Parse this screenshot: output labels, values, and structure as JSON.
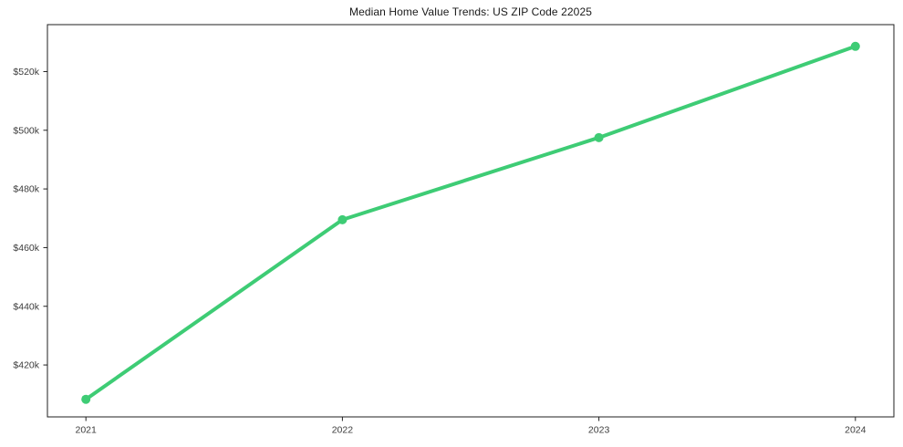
{
  "chart_data": {
    "type": "line",
    "title": "Median Home Value Trends: US ZIP Code 22025",
    "x": [
      2021,
      2022,
      2023,
      2024
    ],
    "values": [
      408300,
      469500,
      497500,
      528600
    ],
    "xlabel": "",
    "ylabel": "",
    "xtick_labels": [
      "2021",
      "2022",
      "2023",
      "2024"
    ],
    "ytick_values": [
      420000,
      440000,
      460000,
      480000,
      500000,
      520000
    ],
    "ytick_labels": [
      "$420k",
      "$440k",
      "$460k",
      "$480k",
      "$500k",
      "$520k"
    ],
    "xlim": [
      2020.85,
      2024.15
    ],
    "ylim": [
      402300,
      536000
    ],
    "grid": false,
    "legend_position": "none",
    "line_color": "#3ecc75",
    "marker": "circle",
    "spine_color": "#1f1f1f",
    "text_color": "#3c3c3c",
    "background_color": "#ffffff"
  }
}
